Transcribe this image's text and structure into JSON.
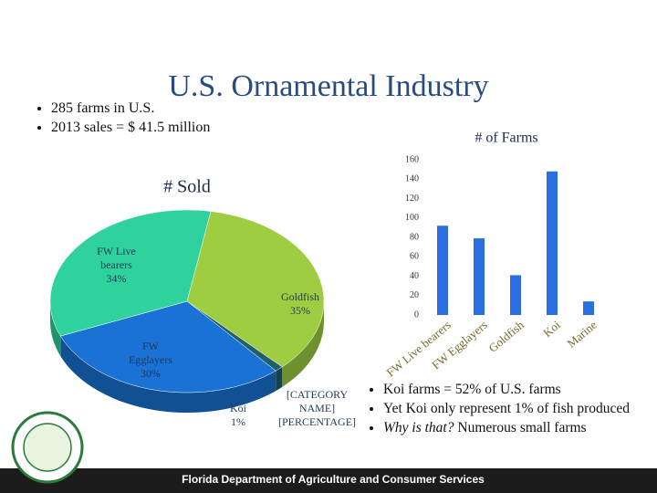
{
  "title": "U.S. Ornamental Industry",
  "bullets": [
    "285 farms in U.S.",
    "2013 sales = $ 41.5 million"
  ],
  "chart_data": [
    {
      "type": "pie",
      "title": "# Sold",
      "categories": [
        "Goldfish",
        "Koi",
        "FW Egglayers",
        "FW Live bearers"
      ],
      "values": [
        35,
        1,
        30,
        34
      ],
      "value_labels": [
        "35%",
        "1%",
        "30%",
        "34%"
      ],
      "colors": [
        "#9fcd42",
        "#1f5f6a",
        "#1a72d4",
        "#2fd29c"
      ],
      "annotation": "[CATEGORY NAME] [PERCENTAGE]"
    },
    {
      "type": "bar",
      "title": "# of Farms",
      "categories": [
        "FW Live bearers",
        "FW Egglayers",
        "Goldfish",
        "Koi",
        "Marine"
      ],
      "values": [
        92,
        79,
        41,
        148,
        14
      ],
      "color": "#2b6ee0",
      "ylim": [
        0,
        160
      ],
      "yticks": [
        0,
        20,
        40,
        60,
        80,
        100,
        120,
        140,
        160
      ],
      "grid": false
    }
  ],
  "notes": [
    "Koi farms = 52% of U.S. farms",
    "Yet Koi only represent 1% of fish produced",
    "Why is that?",
    "Numerous small farms"
  ],
  "footer": "Florida Department of Agriculture and Consumer Services"
}
